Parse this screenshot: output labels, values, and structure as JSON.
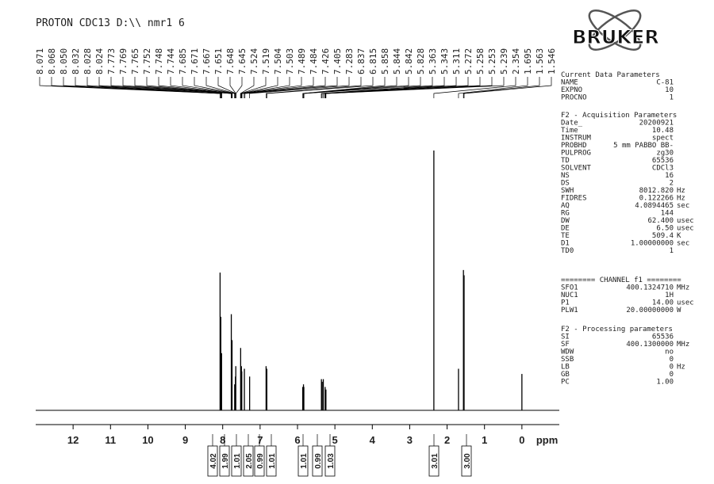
{
  "chart_data": {
    "type": "stick",
    "title": "PROTON CDC13 D:\\\\ nmr1 6",
    "peak_labels": [
      8.071,
      8.068,
      {
        "value": 8.05,
        "label": "8.050"
      },
      8.032,
      8.028,
      8.024,
      7.773,
      7.769,
      7.765,
      7.752,
      7.748,
      7.744,
      7.685,
      7.671,
      7.667,
      7.651,
      7.648,
      7.645,
      7.524,
      7.519,
      7.504,
      7.503,
      7.489,
      7.484,
      7.426,
      7.405,
      7.283,
      6.837,
      6.815,
      5.858,
      5.844,
      5.842,
      5.828,
      5.363,
      5.343,
      5.311,
      5.272,
      5.258,
      5.253,
      5.239,
      2.354,
      1.695,
      1.563,
      1.546
    ],
    "x": [
      8.07,
      8.05,
      8.03,
      7.77,
      7.75,
      7.68,
      7.66,
      7.65,
      7.52,
      7.5,
      7.49,
      7.42,
      7.28,
      6.84,
      6.82,
      5.86,
      5.84,
      5.83,
      5.36,
      5.34,
      5.31,
      5.26,
      5.24,
      2.354,
      1.695,
      1.563,
      1.546,
      0
    ],
    "values": [
      53,
      36,
      22,
      37,
      27,
      10,
      13,
      17,
      24,
      17,
      15,
      16,
      13,
      17,
      16,
      9,
      10,
      9,
      12,
      11,
      12,
      9,
      8,
      100,
      16,
      54,
      52,
      14
    ],
    "xlim": [
      13,
      -1
    ],
    "ylim": [
      0,
      100
    ],
    "xticks": [
      12,
      11,
      10,
      9,
      8,
      7,
      6,
      5,
      4,
      3,
      2,
      1,
      0
    ],
    "x_label": "ppm",
    "integrals": [
      4.02,
      1.99,
      1.01,
      2.05,
      0.99,
      1.01,
      1.01,
      0.99,
      1.03,
      3.01,
      {
        "value": 3,
        "label": "3.00"
      }
    ],
    "color": "#000000"
  },
  "logo": "BRUKER",
  "parameters": [
    {
      "heading": "Current Data Parameters",
      "rows": [
        [
          "NAME",
          "C-81"
        ],
        [
          "EXPNO",
          "10"
        ],
        [
          "PROCNO",
          "1"
        ]
      ]
    },
    {
      "heading": "F2 - Acquisition Parameters",
      "rows": [
        [
          "Date_",
          "20200921"
        ],
        [
          "Time",
          "10.48"
        ],
        [
          "INSTRUM",
          "spect"
        ],
        [
          "PROBHD",
          "5 mm PABBO BB-"
        ],
        [
          "PULPROG",
          "zg30"
        ],
        [
          "TD",
          "65536"
        ],
        [
          "SOLVENT",
          "CDCl3"
        ],
        [
          "NS",
          "16"
        ],
        [
          "DS",
          "2"
        ],
        [
          "SWH",
          "8012.820",
          "Hz"
        ],
        [
          "FIDRES",
          "0.122266",
          "Hz"
        ],
        [
          "AQ",
          "4.0894465",
          "sec"
        ],
        [
          "RG",
          "144"
        ],
        [
          "DW",
          "62.400",
          "usec"
        ],
        [
          "DE",
          "6.50",
          "usec"
        ],
        [
          "TE",
          "509.4",
          "K"
        ],
        [
          "D1",
          "1.00000000",
          "sec"
        ],
        [
          "TD0",
          "1"
        ]
      ]
    },
    {
      "heading": "======== CHANNEL f1 ========",
      "rows": [
        [
          "SFO1",
          "400.1324710",
          "MHz"
        ],
        [
          "NUC1",
          "1H"
        ],
        [
          "P1",
          "14.00",
          "usec"
        ],
        [
          "PLW1",
          "20.00000000",
          "W"
        ]
      ]
    },
    {
      "heading": "F2 - Processing parameters",
      "rows": [
        [
          "SI",
          "65536"
        ],
        [
          "SF",
          "400.1300000",
          "MHz"
        ],
        [
          "WDW",
          "no"
        ],
        [
          "SSB",
          "0"
        ],
        [
          "LB",
          "0",
          "Hz"
        ],
        [
          "GB",
          "0"
        ],
        [
          "PC",
          "1.00"
        ]
      ]
    }
  ]
}
